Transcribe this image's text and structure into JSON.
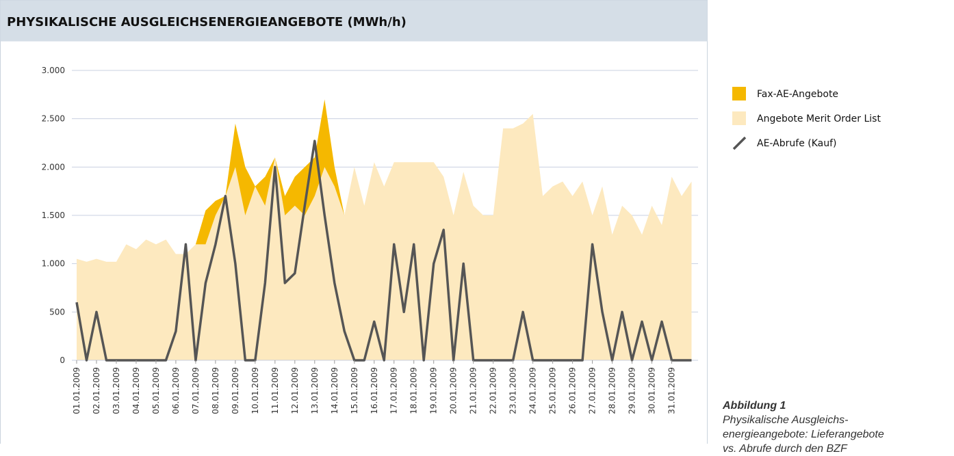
{
  "chart_data": {
    "type": "area",
    "title": "PHYSIKALISCHE AUSGLEICHSENERGIEANGEBOTE (MWh/h)",
    "stacked": true,
    "grid": true,
    "legend": "right",
    "x": [
      0,
      0.5,
      1,
      1.5,
      2,
      2.5,
      3,
      3.5,
      4,
      4.5,
      5,
      5.5,
      6,
      6.5,
      7,
      7.5,
      8,
      8.5,
      9,
      9.5,
      10,
      10.5,
      11,
      11.5,
      12,
      12.5,
      13,
      13.5,
      14,
      14.5,
      15,
      15.5,
      16,
      16.5,
      17,
      17.5,
      18,
      18.5,
      19,
      19.5,
      20,
      20.5,
      21,
      21.5,
      22,
      22.5,
      23,
      23.5,
      24,
      24.5,
      25,
      25.5,
      26,
      26.5,
      27,
      27.5,
      28,
      28.5,
      29,
      29.5,
      30,
      30.5,
      31
    ],
    "series": [
      {
        "name": "Angebote Merit Order List",
        "type": "area",
        "color": "#fde9bf",
        "values": [
          1050,
          1020,
          1050,
          1020,
          1020,
          1200,
          1150,
          1250,
          1200,
          1250,
          1100,
          1100,
          1200,
          1200,
          1500,
          1700,
          2000,
          1500,
          1800,
          1600,
          2100,
          1500,
          1600,
          1500,
          1700,
          2000,
          1800,
          1500,
          2000,
          1600,
          2050,
          1800,
          2050,
          2050,
          2050,
          2050,
          2050,
          1900,
          1500,
          1950,
          1600,
          1500,
          1500,
          2400,
          2400,
          2450,
          2550,
          1700,
          1800,
          1850,
          1700,
          1850,
          1500,
          1800,
          1300,
          1600,
          1500,
          1300,
          1600,
          1400,
          1900,
          1700,
          1850
        ]
      },
      {
        "name": "Fax-AE-Angebote",
        "type": "area",
        "color": "#f5b800",
        "values": [
          0,
          0,
          0,
          0,
          0,
          0,
          0,
          0,
          0,
          0,
          0,
          0,
          0,
          350,
          150,
          0,
          450,
          500,
          0,
          300,
          0,
          200,
          300,
          500,
          400,
          700,
          200,
          0,
          0,
          0,
          0,
          0,
          0,
          0,
          0,
          0,
          0,
          0,
          0,
          0,
          0,
          0,
          0,
          0,
          0,
          0,
          0,
          0,
          0,
          0,
          0,
          0,
          0,
          0,
          0,
          0,
          0,
          0,
          0,
          0,
          0,
          0,
          0
        ]
      },
      {
        "name": "AE-Abrufe (Kauf)",
        "type": "line",
        "color": "#555555",
        "values": [
          600,
          0,
          500,
          0,
          0,
          0,
          0,
          0,
          0,
          0,
          300,
          1200,
          0,
          800,
          1200,
          1700,
          1000,
          0,
          0,
          800,
          2000,
          800,
          900,
          1600,
          2270,
          1500,
          800,
          300,
          0,
          0,
          400,
          0,
          1200,
          500,
          1200,
          0,
          1000,
          1350,
          0,
          1000,
          0,
          0,
          0,
          0,
          0,
          500,
          0,
          0,
          0,
          0,
          0,
          0,
          1200,
          500,
          0,
          500,
          0,
          400,
          0,
          400,
          0,
          0,
          0
        ]
      }
    ],
    "xlim": [
      0,
      31.5
    ],
    "xticks": [
      {
        "value": 0,
        "label": "01.01.2009"
      },
      {
        "value": 1,
        "label": "02.01.2009"
      },
      {
        "value": 2,
        "label": "03.01.2009"
      },
      {
        "value": 3,
        "label": "04.01.2009"
      },
      {
        "value": 4,
        "label": "05.01.2009"
      },
      {
        "value": 5,
        "label": "06.01.2009"
      },
      {
        "value": 6,
        "label": "07.01.2009"
      },
      {
        "value": 7,
        "label": "08.01.2009"
      },
      {
        "value": 8,
        "label": "09.01.2009"
      },
      {
        "value": 9,
        "label": "10.01.2009"
      },
      {
        "value": 10,
        "label": "11.01.2009"
      },
      {
        "value": 11,
        "label": "12.01.2009"
      },
      {
        "value": 12,
        "label": "13.01.2009"
      },
      {
        "value": 13,
        "label": "14.01.2009"
      },
      {
        "value": 14,
        "label": "15.01.2009"
      },
      {
        "value": 15,
        "label": "16.01.2009"
      },
      {
        "value": 16,
        "label": "17.01.2009"
      },
      {
        "value": 17,
        "label": "18.01.2009"
      },
      {
        "value": 18,
        "label": "19.01.2009"
      },
      {
        "value": 19,
        "label": "20.01.2009"
      },
      {
        "value": 20,
        "label": "21.01.2009"
      },
      {
        "value": 21,
        "label": "22.01.2009"
      },
      {
        "value": 22,
        "label": "23.01.2009"
      },
      {
        "value": 23,
        "label": "24.01.2009"
      },
      {
        "value": 24,
        "label": "25.01.2009"
      },
      {
        "value": 25,
        "label": "26.01.2009"
      },
      {
        "value": 26,
        "label": "27.01.2009"
      },
      {
        "value": 27,
        "label": "28.01.2009"
      },
      {
        "value": 28,
        "label": "29.01.2009"
      },
      {
        "value": 29,
        "label": "30.01.2009"
      },
      {
        "value": 30,
        "label": "31.01.2009"
      }
    ],
    "ylim": [
      0,
      3000
    ],
    "yticks": [
      0,
      500,
      {
        "value": 1000,
        "label": "1.000"
      },
      {
        "value": 1500,
        "label": "1.500"
      },
      {
        "value": 2000,
        "label": "2.000"
      },
      {
        "value": 2500,
        "label": "2.500"
      },
      {
        "value": 3000,
        "label": "3.000"
      }
    ],
    "caption": {
      "heading": "Abbildung 1",
      "lines": [
        "Physikalische Ausgleichs-",
        "energieangebote: Lieferangebote",
        "vs. Abrufe durch den BZF"
      ]
    }
  }
}
